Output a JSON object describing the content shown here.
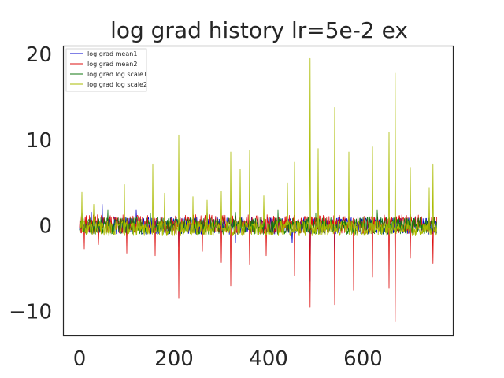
{
  "chart_data": {
    "type": "line",
    "title": "log grad history lr=5e-2 ex",
    "xlabel": "",
    "ylabel": "",
    "xlim": [
      -35,
      790
    ],
    "ylim": [
      -12.8,
      21.0
    ],
    "x_ticks": [
      0,
      200,
      400,
      600
    ],
    "x_tick_labels": [
      "0",
      "200",
      "400",
      "600"
    ],
    "y_ticks": [
      -10,
      0,
      10,
      20
    ],
    "y_tick_labels": [
      "−10",
      "0",
      "10",
      "20"
    ],
    "grid": false,
    "legend": "top-left",
    "n_points": 757,
    "series": [
      {
        "name": "log grad mean1",
        "color": "#0000cc",
        "baseline": 0.0,
        "noise": 1.0,
        "spikes": [
          [
            25,
            1.6
          ],
          [
            48,
            2.5
          ],
          [
            120,
            1.8
          ],
          [
            210,
            -2.5
          ],
          [
            330,
            -2.0
          ],
          [
            450,
            -2.0
          ],
          [
            488,
            -6.5
          ],
          [
            540,
            -3.5
          ],
          [
            668,
            -2.8
          ],
          [
            740,
            1.2
          ]
        ]
      },
      {
        "name": "log grad mean2",
        "color": "#dd1111",
        "baseline": 0.2,
        "noise": 1.1,
        "spikes": [
          [
            10,
            -2.7
          ],
          [
            40,
            -2.2
          ],
          [
            100,
            -3.2
          ],
          [
            160,
            -3.5
          ],
          [
            210,
            -8.5
          ],
          [
            260,
            -3.0
          ],
          [
            300,
            -4.3
          ],
          [
            320,
            -7.0
          ],
          [
            360,
            -4.5
          ],
          [
            395,
            -3.5
          ],
          [
            455,
            -5.8
          ],
          [
            488,
            -9.5
          ],
          [
            540,
            -9.2
          ],
          [
            580,
            -7.5
          ],
          [
            620,
            -6.0
          ],
          [
            655,
            -7.3
          ],
          [
            668,
            -11.2
          ],
          [
            700,
            -3.8
          ],
          [
            748,
            -4.4
          ]
        ]
      },
      {
        "name": "log grad log scale1",
        "color": "#117711",
        "baseline": 0.0,
        "noise": 1.0,
        "spikes": [
          [
            5,
            2.0
          ],
          [
            60,
            1.8
          ],
          [
            150,
            1.5
          ],
          [
            270,
            2.0
          ],
          [
            330,
            1.6
          ],
          [
            420,
            1.8
          ],
          [
            500,
            1.5
          ],
          [
            630,
            1.8
          ],
          [
            700,
            1.3
          ]
        ]
      },
      {
        "name": "log grad log scale2",
        "color": "#aabb00",
        "baseline": -0.3,
        "noise": 0.9,
        "spikes": [
          [
            5,
            3.9
          ],
          [
            30,
            2.5
          ],
          [
            95,
            4.8
          ],
          [
            155,
            7.2
          ],
          [
            180,
            3.8
          ],
          [
            210,
            10.6
          ],
          [
            240,
            3.4
          ],
          [
            270,
            3.0
          ],
          [
            300,
            4.0
          ],
          [
            320,
            8.6
          ],
          [
            340,
            6.6
          ],
          [
            360,
            8.8
          ],
          [
            390,
            3.5
          ],
          [
            440,
            5.0
          ],
          [
            455,
            7.4
          ],
          [
            488,
            19.5
          ],
          [
            505,
            9.0
          ],
          [
            540,
            13.8
          ],
          [
            570,
            8.6
          ],
          [
            620,
            9.2
          ],
          [
            655,
            10.9
          ],
          [
            668,
            17.8
          ],
          [
            700,
            6.8
          ],
          [
            740,
            4.4
          ],
          [
            748,
            7.2
          ]
        ]
      }
    ]
  }
}
